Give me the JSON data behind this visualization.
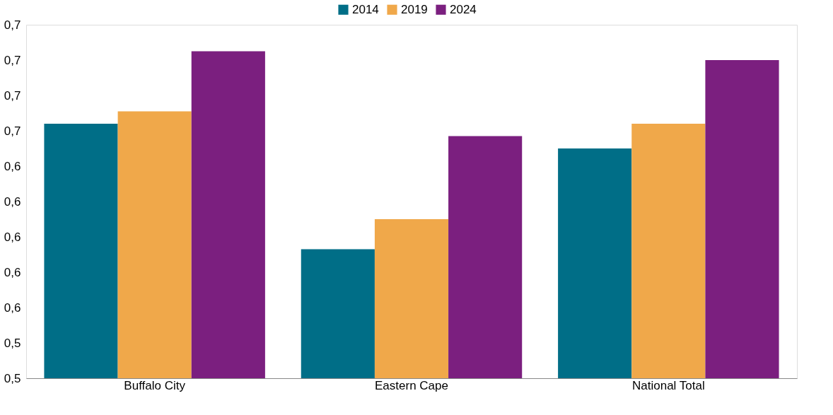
{
  "chart_data": {
    "type": "bar",
    "categories": [
      "Buffalo City",
      "Eastern Cape",
      "National Total"
    ],
    "series": [
      {
        "name": "2014",
        "color": "#006e87",
        "values": [
          0.664,
          0.593,
          0.65
        ]
      },
      {
        "name": "2019",
        "color": "#f0a84a",
        "values": [
          0.671,
          0.61,
          0.664
        ]
      },
      {
        "name": "2024",
        "color": "#7b1f7f",
        "values": [
          0.705,
          0.657,
          0.7
        ]
      }
    ],
    "ylim": [
      0.52,
      0.72
    ],
    "yticks": [
      {
        "value": 0.52,
        "label": "0,5"
      },
      {
        "value": 0.54,
        "label": "0,5"
      },
      {
        "value": 0.56,
        "label": "0,6"
      },
      {
        "value": 0.58,
        "label": "0,6"
      },
      {
        "value": 0.6,
        "label": "0,6"
      },
      {
        "value": 0.62,
        "label": "0,6"
      },
      {
        "value": 0.64,
        "label": "0,6"
      },
      {
        "value": 0.66,
        "label": "0,7"
      },
      {
        "value": 0.68,
        "label": "0,7"
      },
      {
        "value": 0.7,
        "label": "0,7"
      },
      {
        "value": 0.72,
        "label": "0,7"
      }
    ],
    "grid": false,
    "legend": "top"
  }
}
